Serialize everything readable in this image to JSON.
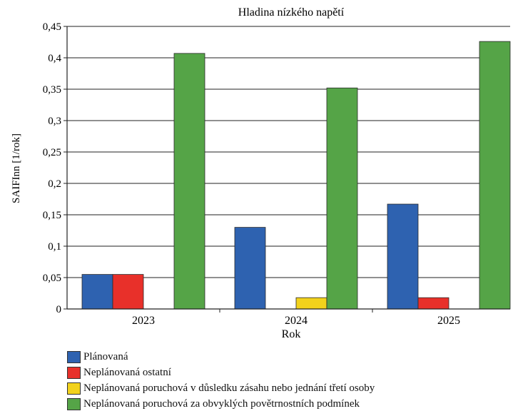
{
  "header_text": "",
  "chart_data": {
    "type": "bar",
    "title": "Hladina nízkého napětí",
    "xlabel": "Rok",
    "ylabel": "SAIFInn [1/rok]",
    "categories": [
      "2023",
      "2024",
      "2025"
    ],
    "ylim": [
      0,
      0.45
    ],
    "yticks": [
      {
        "value": 0,
        "label": "0"
      },
      {
        "value": 0.05,
        "label": "0,05"
      },
      {
        "value": 0.1,
        "label": "0,1"
      },
      {
        "value": 0.15,
        "label": "0,15"
      },
      {
        "value": 0.2,
        "label": "0,2"
      },
      {
        "value": 0.25,
        "label": "0,25"
      },
      {
        "value": 0.3,
        "label": "0,3"
      },
      {
        "value": 0.35,
        "label": "0,35"
      },
      {
        "value": 0.4,
        "label": "0,4"
      },
      {
        "value": 0.45,
        "label": "0,45"
      }
    ],
    "grid": true,
    "legend_position": "bottom",
    "series": [
      {
        "name": "Plánovaná",
        "color": "#2e62b0",
        "values": [
          0.055,
          0.13,
          0.167
        ]
      },
      {
        "name": "Neplánovaná ostatní",
        "color": "#e8302a",
        "values": [
          0.055,
          0,
          0.018
        ]
      },
      {
        "name": "Neplánovaná poruchová v důsledku zásahu nebo jednání třetí osoby",
        "color": "#f2d21c",
        "values": [
          0,
          0.018,
          0
        ]
      },
      {
        "name": "Neplánovaná poruchová za obvyklých povětrnostních podmínek",
        "color": "#55a447",
        "values": [
          0.407,
          0.352,
          0.426
        ]
      }
    ]
  }
}
